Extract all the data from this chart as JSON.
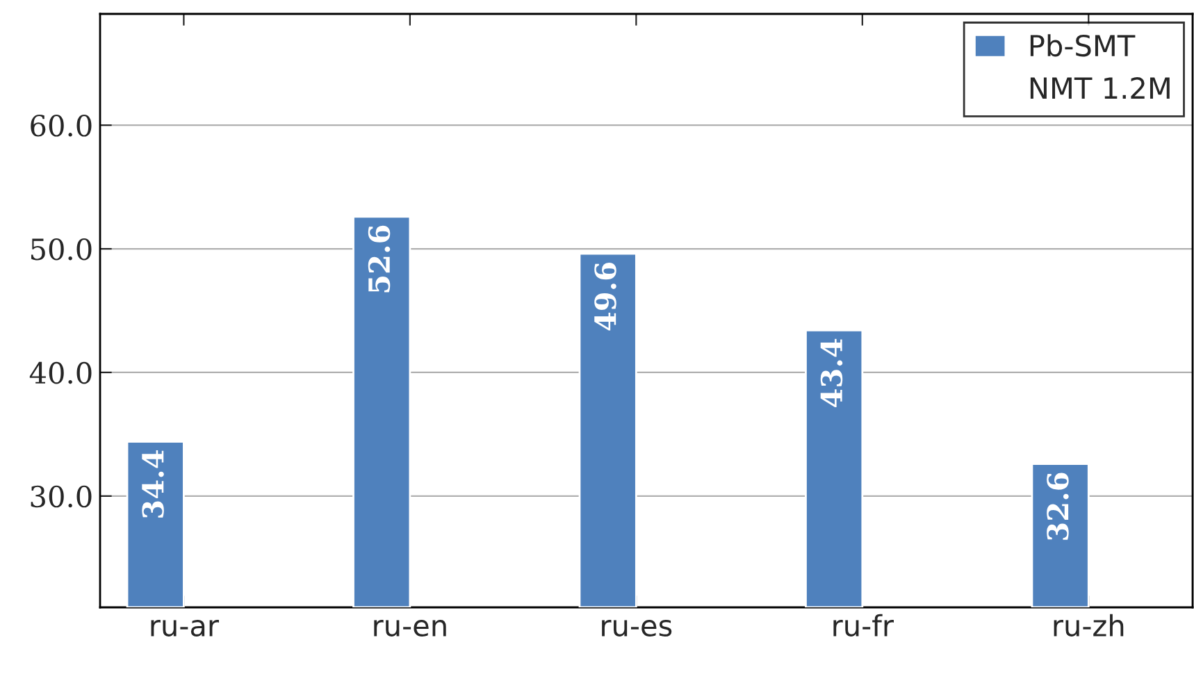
{
  "chart_data": {
    "type": "bar",
    "categories": [
      "ru-ar",
      "ru-en",
      "ru-es",
      "ru-fr",
      "ru-zh"
    ],
    "series": [
      {
        "name": "Pb-SMT",
        "color": "#4f81bd",
        "values": [
          34.4,
          52.6,
          49.6,
          43.4,
          32.6
        ]
      },
      {
        "name": "NMT 1.2M",
        "values": [
          null,
          null,
          null,
          null,
          null
        ]
      }
    ],
    "ylim": [
      21,
      69
    ],
    "yticks": [
      {
        "value": 30,
        "label": "30.0"
      },
      {
        "value": 40,
        "label": "40.0"
      },
      {
        "value": 50,
        "label": "50.0"
      },
      {
        "value": 60,
        "label": "60.0"
      }
    ],
    "grid": "y",
    "legend": "top right",
    "data_labels": true
  }
}
